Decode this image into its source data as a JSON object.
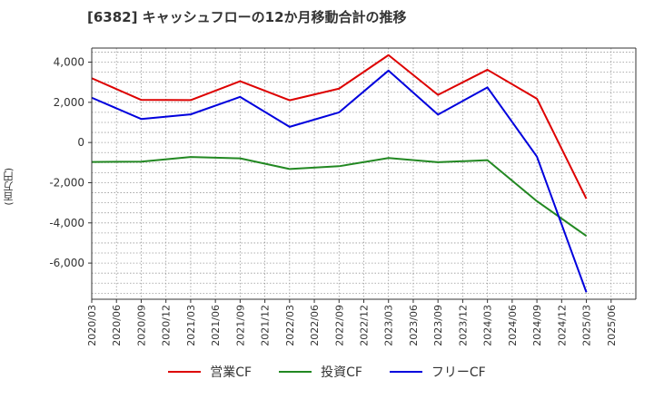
{
  "chart_data": {
    "type": "line",
    "title": "[6382]  キャッシュフローの12か月移動合計の推移",
    "ylabel": "(百万円)",
    "xlabel": "",
    "ylim": [
      -7800,
      4700
    ],
    "yticks": [
      4000,
      2000,
      0,
      -2000,
      -4000,
      -6000
    ],
    "ytick_labels": [
      "4,000",
      "2,000",
      "0",
      "-2,000",
      "-4,000",
      "-6,000"
    ],
    "x_tick_labels": [
      "2020/03",
      "2020/06",
      "2020/09",
      "2020/12",
      "2021/03",
      "2021/06",
      "2021/09",
      "2021/12",
      "2022/03",
      "2022/06",
      "2022/09",
      "2022/12",
      "2023/03",
      "2023/06",
      "2023/09",
      "2023/12",
      "2024/03",
      "2024/06",
      "2024/09",
      "2024/12",
      "2025/03",
      "2025/06"
    ],
    "data_x": [
      "2020/03",
      "2020/09",
      "2021/03",
      "2021/09",
      "2022/03",
      "2022/09",
      "2023/03",
      "2023/09",
      "2024/03",
      "2024/09",
      "2025/03"
    ],
    "series": [
      {
        "name": "営業CF",
        "color": "#dd0000",
        "values": [
          3200,
          2120,
          2110,
          3050,
          2100,
          2680,
          4350,
          2370,
          3620,
          2180,
          -2800
        ]
      },
      {
        "name": "投資CF",
        "color": "#228822",
        "values": [
          -970,
          -950,
          -720,
          -790,
          -1320,
          -1180,
          -770,
          -980,
          -880,
          -2920,
          -4650
        ]
      },
      {
        "name": "フリーCF",
        "color": "#0000dd",
        "values": [
          2230,
          1170,
          1400,
          2270,
          780,
          1500,
          3580,
          1390,
          2740,
          -700,
          -7450
        ]
      }
    ],
    "grid": true,
    "legend_position": "bottom"
  }
}
